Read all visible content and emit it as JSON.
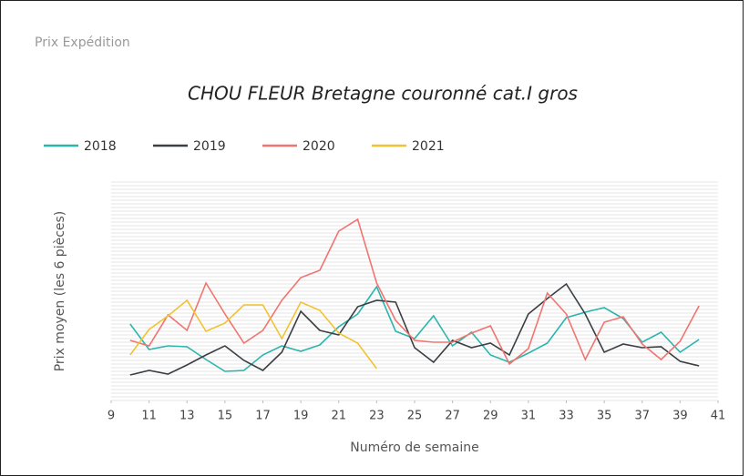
{
  "chart_data": {
    "type": "line",
    "header": "Prix Expédition",
    "title": "CHOU FLEUR Bretagne couronné cat.I gros",
    "x_label": "Numéro de semaine",
    "y_label": "Prix moyen  (les 6 pièces)",
    "x": [
      10,
      11,
      12,
      13,
      14,
      15,
      16,
      17,
      18,
      19,
      20,
      21,
      22,
      23,
      24,
      25,
      26,
      27,
      28,
      29,
      30,
      31,
      32,
      33,
      34,
      35,
      36,
      37,
      38,
      39,
      40
    ],
    "xlim": [
      9,
      41
    ],
    "xticks": [
      9,
      11,
      13,
      15,
      17,
      19,
      21,
      23,
      25,
      27,
      29,
      31,
      33,
      35,
      37,
      39,
      41
    ],
    "ylim": [
      0,
      240
    ],
    "series": [
      {
        "name": "2018",
        "color": "#2bb5ad",
        "values": [
          84,
          56,
          60,
          59,
          45,
          32,
          33,
          50,
          60,
          54,
          61,
          81,
          95,
          125,
          76,
          68,
          93,
          60,
          75,
          50,
          42,
          52,
          63,
          91,
          97,
          102,
          90,
          64,
          75,
          53,
          67
        ]
      },
      {
        "name": "2019",
        "color": "#3a3f44",
        "values": [
          28,
          33,
          29,
          39,
          50,
          60,
          44,
          33,
          53,
          98,
          77,
          72,
          103,
          110,
          108,
          58,
          42,
          66,
          58,
          63,
          50,
          95,
          112,
          128,
          95,
          53,
          62,
          58,
          59,
          43,
          38
        ]
      },
      {
        "name": "2020",
        "color": "#f07470",
        "values": [
          66,
          60,
          94,
          77,
          129,
          95,
          63,
          77,
          110,
          135,
          143,
          186,
          199,
          129,
          88,
          66,
          64,
          64,
          74,
          82,
          40,
          57,
          118,
          95,
          45,
          86,
          92,
          62,
          45,
          65,
          104
        ]
      },
      {
        "name": "2021",
        "color": "#f2c232",
        "values": [
          50,
          78,
          93,
          110,
          76,
          85,
          105,
          105,
          68,
          108,
          99,
          74,
          63,
          35,
          null,
          null,
          null,
          null,
          null,
          null,
          null,
          null,
          null,
          null,
          null,
          null,
          null,
          null,
          null,
          null,
          null
        ]
      }
    ]
  }
}
